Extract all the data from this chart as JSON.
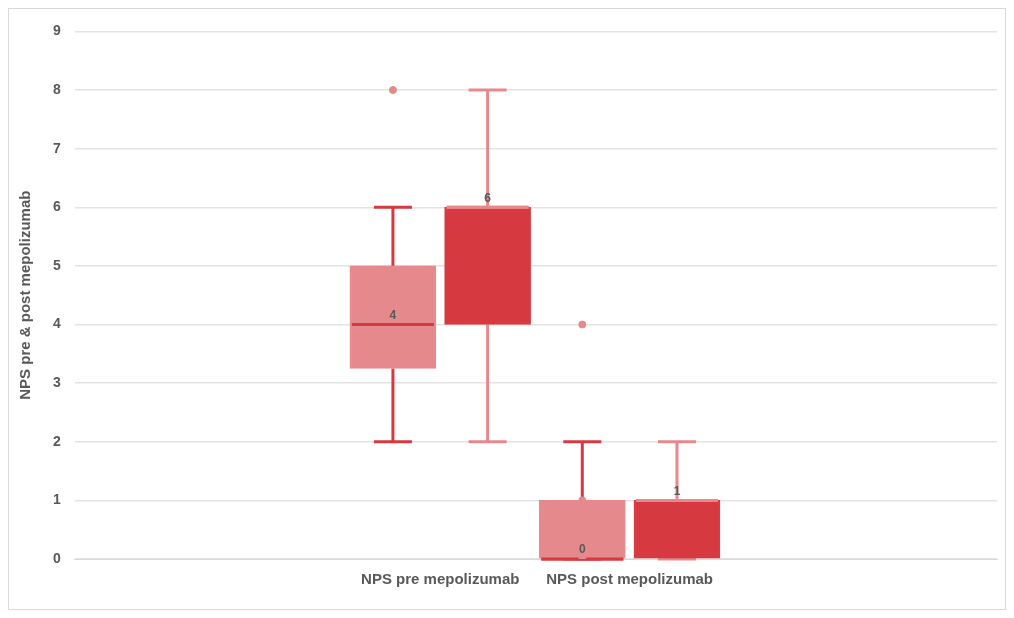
{
  "chart_data": {
    "type": "box",
    "ylabel": "NPS pre & post mepolizumab",
    "categories": [
      "NPS pre mepolizumab",
      "NPS post mepolizumab"
    ],
    "ylim": [
      0,
      9
    ],
    "yticks": [
      0,
      1,
      2,
      3,
      4,
      5,
      6,
      7,
      8,
      9
    ],
    "grid": "y",
    "legend": false,
    "annotations": [
      "4",
      "6",
      "0",
      "1"
    ],
    "series": [
      {
        "color": "#e6898d",
        "boxes": [
          {
            "low": 2,
            "q1": 3.25,
            "median": 4,
            "q3": 5,
            "high": 6,
            "outliers": [
              8
            ]
          },
          {
            "low": 0,
            "q1": 0,
            "median": 0,
            "q3": 1,
            "high": 2,
            "outliers": [
              4,
              1,
              0
            ]
          }
        ]
      },
      {
        "color": "#d63a40",
        "boxes": [
          {
            "low": 2,
            "q1": 4,
            "median": 6,
            "q3": 6,
            "high": 8
          },
          {
            "low": 0,
            "q1": 0,
            "median": 1,
            "q3": 1,
            "high": 2
          }
        ]
      }
    ]
  }
}
